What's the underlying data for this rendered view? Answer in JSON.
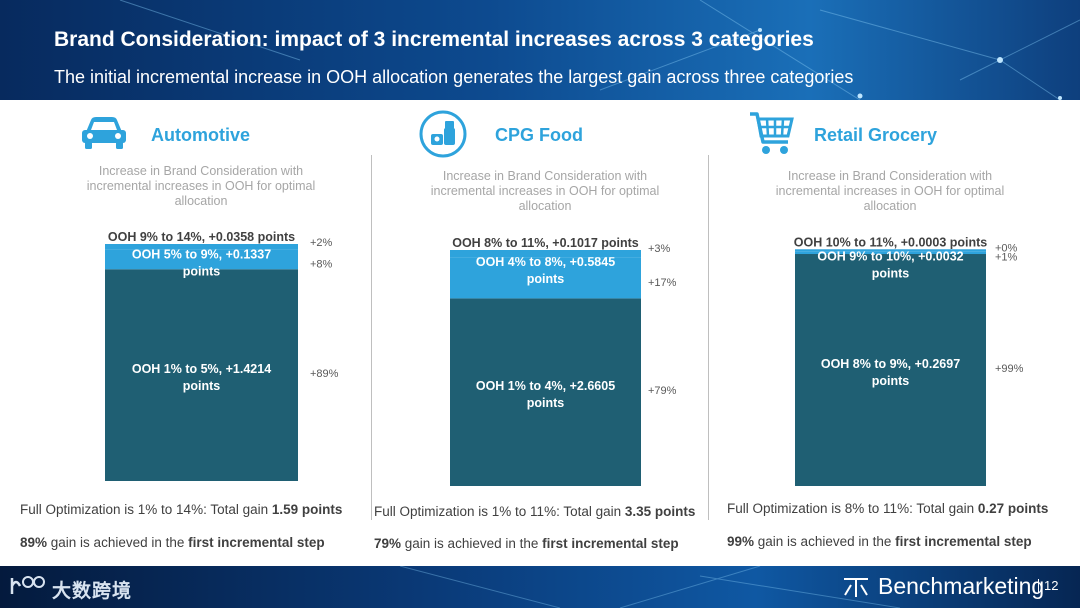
{
  "header": {
    "title": "Brand Consideration: impact of 3 incremental increases across 3 categories",
    "subtitle": "The initial incremental increase in OOH allocation generates the largest gain across three categories"
  },
  "colors": {
    "dark_segment": "#1f5f73",
    "light_segment": "#2ea3dc",
    "accent": "#2ea3dc",
    "label_text": "#404040",
    "pct_text": "#595959"
  },
  "panels": [
    {
      "title": "Automotive",
      "icon": "car-icon",
      "caption": "Increase in Brand Consideration with incremental increases in OOH for optimal allocation",
      "summary": {
        "line1_prefix": "Full Optimization is 1% to 14%: Total gain ",
        "line1_value": "1.59 points",
        "line2_pct": "89%",
        "line2_mid": " gain is achieved in the ",
        "line2_bold": "first incremental step"
      }
    },
    {
      "title": "CPG Food",
      "icon": "food-basket-icon",
      "caption": "Increase in Brand Consideration with incremental increases in OOH for optimal allocation",
      "summary": {
        "line1_prefix": "Full Optimization is 1% to 11%: Total gain ",
        "line1_value": "3.35 points",
        "line2_pct": "79%",
        "line2_mid": " gain is achieved in the ",
        "line2_bold": "first incremental step"
      }
    },
    {
      "title": "Retail Grocery",
      "icon": "shopping-cart-icon",
      "caption": "Increase in Brand Consideration with incremental increases in OOH for optimal allocation",
      "summary": {
        "line1_prefix": "Full Optimization is 8% to 11%: Total gain ",
        "line1_value": "0.27 points",
        "line2_pct": "99%",
        "line2_mid": " gain is achieved in the ",
        "line2_bold": "first incremental step"
      }
    }
  ],
  "chart_data": [
    {
      "type": "bar",
      "stacked": true,
      "title": "Automotive",
      "total": 1.59,
      "series": [
        {
          "name": "OOH 1% to 5%",
          "value": 1.4214,
          "label": "OOH 1% to 5%, +1.4214 points",
          "pct": "+89%"
        },
        {
          "name": "OOH 5% to 9%",
          "value": 0.1337,
          "label": "OOH 5% to 9%, +0.1337 points",
          "pct": "+8%"
        },
        {
          "name": "OOH 9% to 14%",
          "value": 0.0358,
          "label": "OOH 9% to 14%, +0.0358 points",
          "pct": "+2%"
        }
      ]
    },
    {
      "type": "bar",
      "stacked": true,
      "title": "CPG Food",
      "total": 3.35,
      "series": [
        {
          "name": "OOH 1% to 4%",
          "value": 2.6605,
          "label": "OOH 1% to 4%, +2.6605 points",
          "pct": "+79%"
        },
        {
          "name": "OOH 4% to 8%",
          "value": 0.5845,
          "label": "OOH 4% to 8%, +0.5845 points",
          "pct": "+17%"
        },
        {
          "name": "OOH 8% to 11%",
          "value": 0.1017,
          "label": "OOH 8% to 11%, +0.1017 points",
          "pct": "+3%"
        }
      ]
    },
    {
      "type": "bar",
      "stacked": true,
      "title": "Retail Grocery",
      "total": 0.27,
      "series": [
        {
          "name": "OOH 8% to 9%",
          "value": 0.2697,
          "label": "OOH 8% to 9%, +0.2697 points",
          "pct": "+99%"
        },
        {
          "name": "OOH 9% to 10%",
          "value": 0.0032,
          "label": "OOH 9% to 10%, +0.0032 points",
          "pct": "+1%"
        },
        {
          "name": "OOH 10% to 11%",
          "value": 0.0003,
          "label": "OOH 10% to 11%, +0.0003 points",
          "pct": "+0%"
        }
      ]
    }
  ],
  "footer": {
    "watermark_text": "大数跨境",
    "brand": "Benchmarketing",
    "page_number": "12"
  }
}
